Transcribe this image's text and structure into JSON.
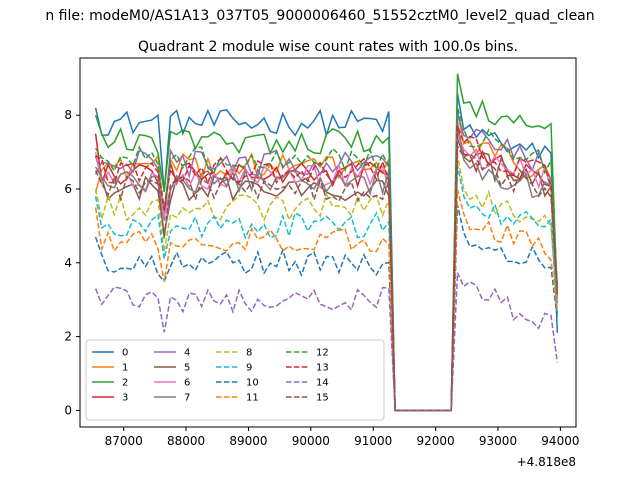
{
  "figure": {
    "suptitle": "n file: modeM0/AS1A13_037T05_9000006460_51552cztM0_level2_quad_clean",
    "title": "Quadrant 2 module wise count rates with 100.0s bins.",
    "x_offset_label": "+4.818e8"
  },
  "chart_data": {
    "type": "line",
    "title": "Quadrant 2 module wise count rates with 100.0s bins.",
    "xlabel": "",
    "ylabel": "",
    "x_offset": 481800000,
    "xlim": [
      86300,
      94250
    ],
    "ylim": [
      -0.45,
      9.55
    ],
    "xticks": [
      87000,
      88000,
      89000,
      90000,
      91000,
      92000,
      93000,
      94000
    ],
    "yticks": [
      0,
      2,
      4,
      6,
      8
    ],
    "grid": false,
    "legend": {
      "placement": "lower-left",
      "columns": 4
    },
    "x_start": 86550,
    "x_step": 100,
    "n_points": 75,
    "gap_start_index": 48,
    "gap_end_index": 57,
    "series": [
      {
        "name": "0",
        "color": "#1f77b4",
        "linestyle": "solid",
        "pre": 7.8,
        "post": 7.7,
        "first": 8.2,
        "last": 2.1
      },
      {
        "name": "1",
        "color": "#ff7f0e",
        "linestyle": "solid",
        "pre": 6.6,
        "post": 7.3,
        "first": 5.9,
        "last": 3.0
      },
      {
        "name": "2",
        "color": "#2ca02c",
        "linestyle": "solid",
        "pre": 7.3,
        "post": 8.4,
        "first": 8.0,
        "last": 3.0
      },
      {
        "name": "3",
        "color": "#d62728",
        "linestyle": "solid",
        "pre": 6.4,
        "post": 7.0,
        "first": 7.5,
        "last": 2.9
      },
      {
        "name": "4",
        "color": "#9467bd",
        "linestyle": "solid",
        "pre": 6.7,
        "post": 7.5,
        "first": 6.4,
        "last": 3.4
      },
      {
        "name": "5",
        "color": "#8c564b",
        "linestyle": "solid",
        "pre": 6.0,
        "post": 6.9,
        "first": 6.9,
        "last": 3.0
      },
      {
        "name": "6",
        "color": "#e377c2",
        "linestyle": "solid",
        "pre": 6.3,
        "post": 7.1,
        "first": 7.0,
        "last": 3.0
      },
      {
        "name": "7",
        "color": "#7f7f7f",
        "linestyle": "solid",
        "pre": 6.2,
        "post": 6.8,
        "first": 6.6,
        "last": 3.2
      },
      {
        "name": "8",
        "color": "#bcbd22",
        "linestyle": "dashed",
        "pre": 5.5,
        "post": 6.0,
        "first": 6.0,
        "last": 2.8
      },
      {
        "name": "9",
        "color": "#17becf",
        "linestyle": "dashed",
        "pre": 5.0,
        "post": 5.8,
        "first": 5.8,
        "last": 2.6
      },
      {
        "name": "10",
        "color": "#1f77b4",
        "linestyle": "dashed",
        "pre": 4.0,
        "post": 4.8,
        "first": 4.7,
        "last": 2.5
      },
      {
        "name": "11",
        "color": "#ff7f0e",
        "linestyle": "dashed",
        "pre": 4.6,
        "post": 5.3,
        "first": 5.5,
        "last": 2.7
      },
      {
        "name": "12",
        "color": "#2ca02c",
        "linestyle": "dashed",
        "pre": 6.8,
        "post": 7.6,
        "first": 7.1,
        "last": 3.3
      },
      {
        "name": "13",
        "color": "#d62728",
        "linestyle": "dashed",
        "pre": 6.5,
        "post": 7.2,
        "first": 6.9,
        "last": 3.1
      },
      {
        "name": "14",
        "color": "#9467bd",
        "linestyle": "dashed",
        "pre": 3.0,
        "post": 3.3,
        "first": 3.3,
        "last": 1.3
      },
      {
        "name": "15",
        "color": "#8c564b",
        "linestyle": "dashed",
        "pre": 6.0,
        "post": 6.8,
        "first": 6.5,
        "last": 3.2
      }
    ]
  }
}
